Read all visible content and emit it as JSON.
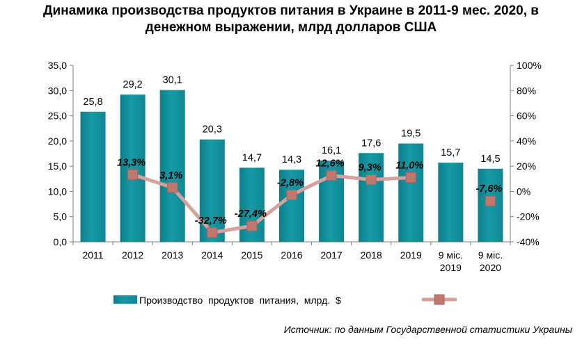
{
  "chart_data": {
    "type": "bar",
    "title_lines": [
      "Динамика производства продуктов питания в Украине в 2011-9 мес. 2020, в",
      "денежном выражении, млрд долларов США"
    ],
    "categories": [
      [
        "2011"
      ],
      [
        "2012"
      ],
      [
        "2013"
      ],
      [
        "2014"
      ],
      [
        "2015"
      ],
      [
        "2016"
      ],
      [
        "2017"
      ],
      [
        "2018"
      ],
      [
        "2019"
      ],
      [
        "9 міс.",
        "2019"
      ],
      [
        "9 міс.",
        "2020"
      ]
    ],
    "bar_series": {
      "name": "Производство  продуктов  питания,  млрд.  $",
      "values": [
        25.8,
        29.2,
        30.1,
        20.3,
        14.7,
        14.3,
        16.1,
        17.6,
        19.5,
        15.7,
        14.5
      ],
      "labels": [
        "25,8",
        "29,2",
        "30,1",
        "20,3",
        "14,7",
        "14,3",
        "16,1",
        "17,6",
        "19,5",
        "15,7",
        "14,5"
      ],
      "color": "#169aa6"
    },
    "line_series": {
      "name": "",
      "values": [
        null,
        13.3,
        3.1,
        -32.7,
        -27.4,
        -2.8,
        12.6,
        9.3,
        11.0,
        null,
        -7.6
      ],
      "labels": [
        "",
        "13,3%",
        "3,1%",
        "-32,7%",
        "-27,4%",
        "-2,8%",
        "12,6%",
        "9,3%",
        "11,0%",
        "",
        "-7,6%"
      ],
      "line_color": "#d4a29a",
      "marker_color": "#c0786c"
    },
    "y_left": {
      "min": 0,
      "max": 35,
      "step": 5,
      "ticks": [
        "0,0",
        "5,0",
        "10,0",
        "15,0",
        "20,0",
        "25,0",
        "30,0",
        "35,0"
      ]
    },
    "y_right": {
      "min": -40,
      "max": 100,
      "step": 20,
      "ticks": [
        "-40%",
        "-20%",
        "0%",
        "20%",
        "40%",
        "60%",
        "80%",
        "100%"
      ]
    },
    "grid": false,
    "legend_position": "bottom"
  },
  "source": "Источник: по данным Государственной статистики Украины"
}
